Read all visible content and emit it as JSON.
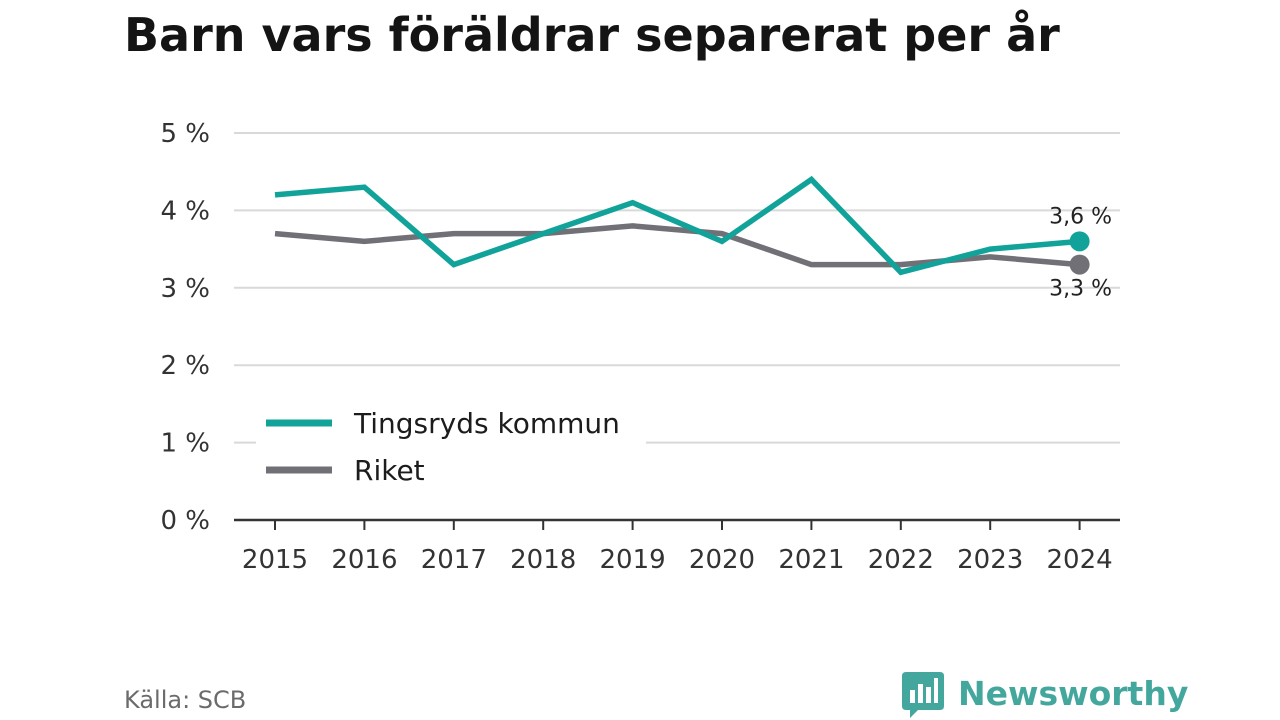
{
  "title": "Barn vars föräldrar separerat per år",
  "source": "Källa: SCB",
  "brand": {
    "name": "Newsworthy",
    "icon": "bar-chart-speech-bubble-icon"
  },
  "colors": {
    "tingsryd": "#11a39a",
    "riket": "#717077",
    "grid": "#d9d9d9",
    "axis": "#333333",
    "brand": "#44a79e"
  },
  "chart_data": {
    "type": "line",
    "title": "Barn vars föräldrar separerat per år",
    "xlabel": "",
    "ylabel": "",
    "x": [
      2015,
      2016,
      2017,
      2018,
      2019,
      2020,
      2021,
      2022,
      2023,
      2024
    ],
    "y_ticks": [
      "0 %",
      "1 %",
      "2 %",
      "3 %",
      "4 %",
      "5 %"
    ],
    "ylim": [
      0,
      5
    ],
    "grid": true,
    "legend_position": "bottom-left",
    "series": [
      {
        "name": "Tingsryds kommun",
        "color": "#11a39a",
        "values": [
          4.2,
          4.3,
          3.3,
          3.7,
          4.1,
          3.6,
          4.4,
          3.2,
          3.5,
          3.6
        ],
        "end_label": "3,6 %"
      },
      {
        "name": "Riket",
        "color": "#717077",
        "values": [
          3.7,
          3.6,
          3.7,
          3.7,
          3.8,
          3.7,
          3.3,
          3.3,
          3.4,
          3.3
        ],
        "end_label": "3,3 %"
      }
    ]
  }
}
